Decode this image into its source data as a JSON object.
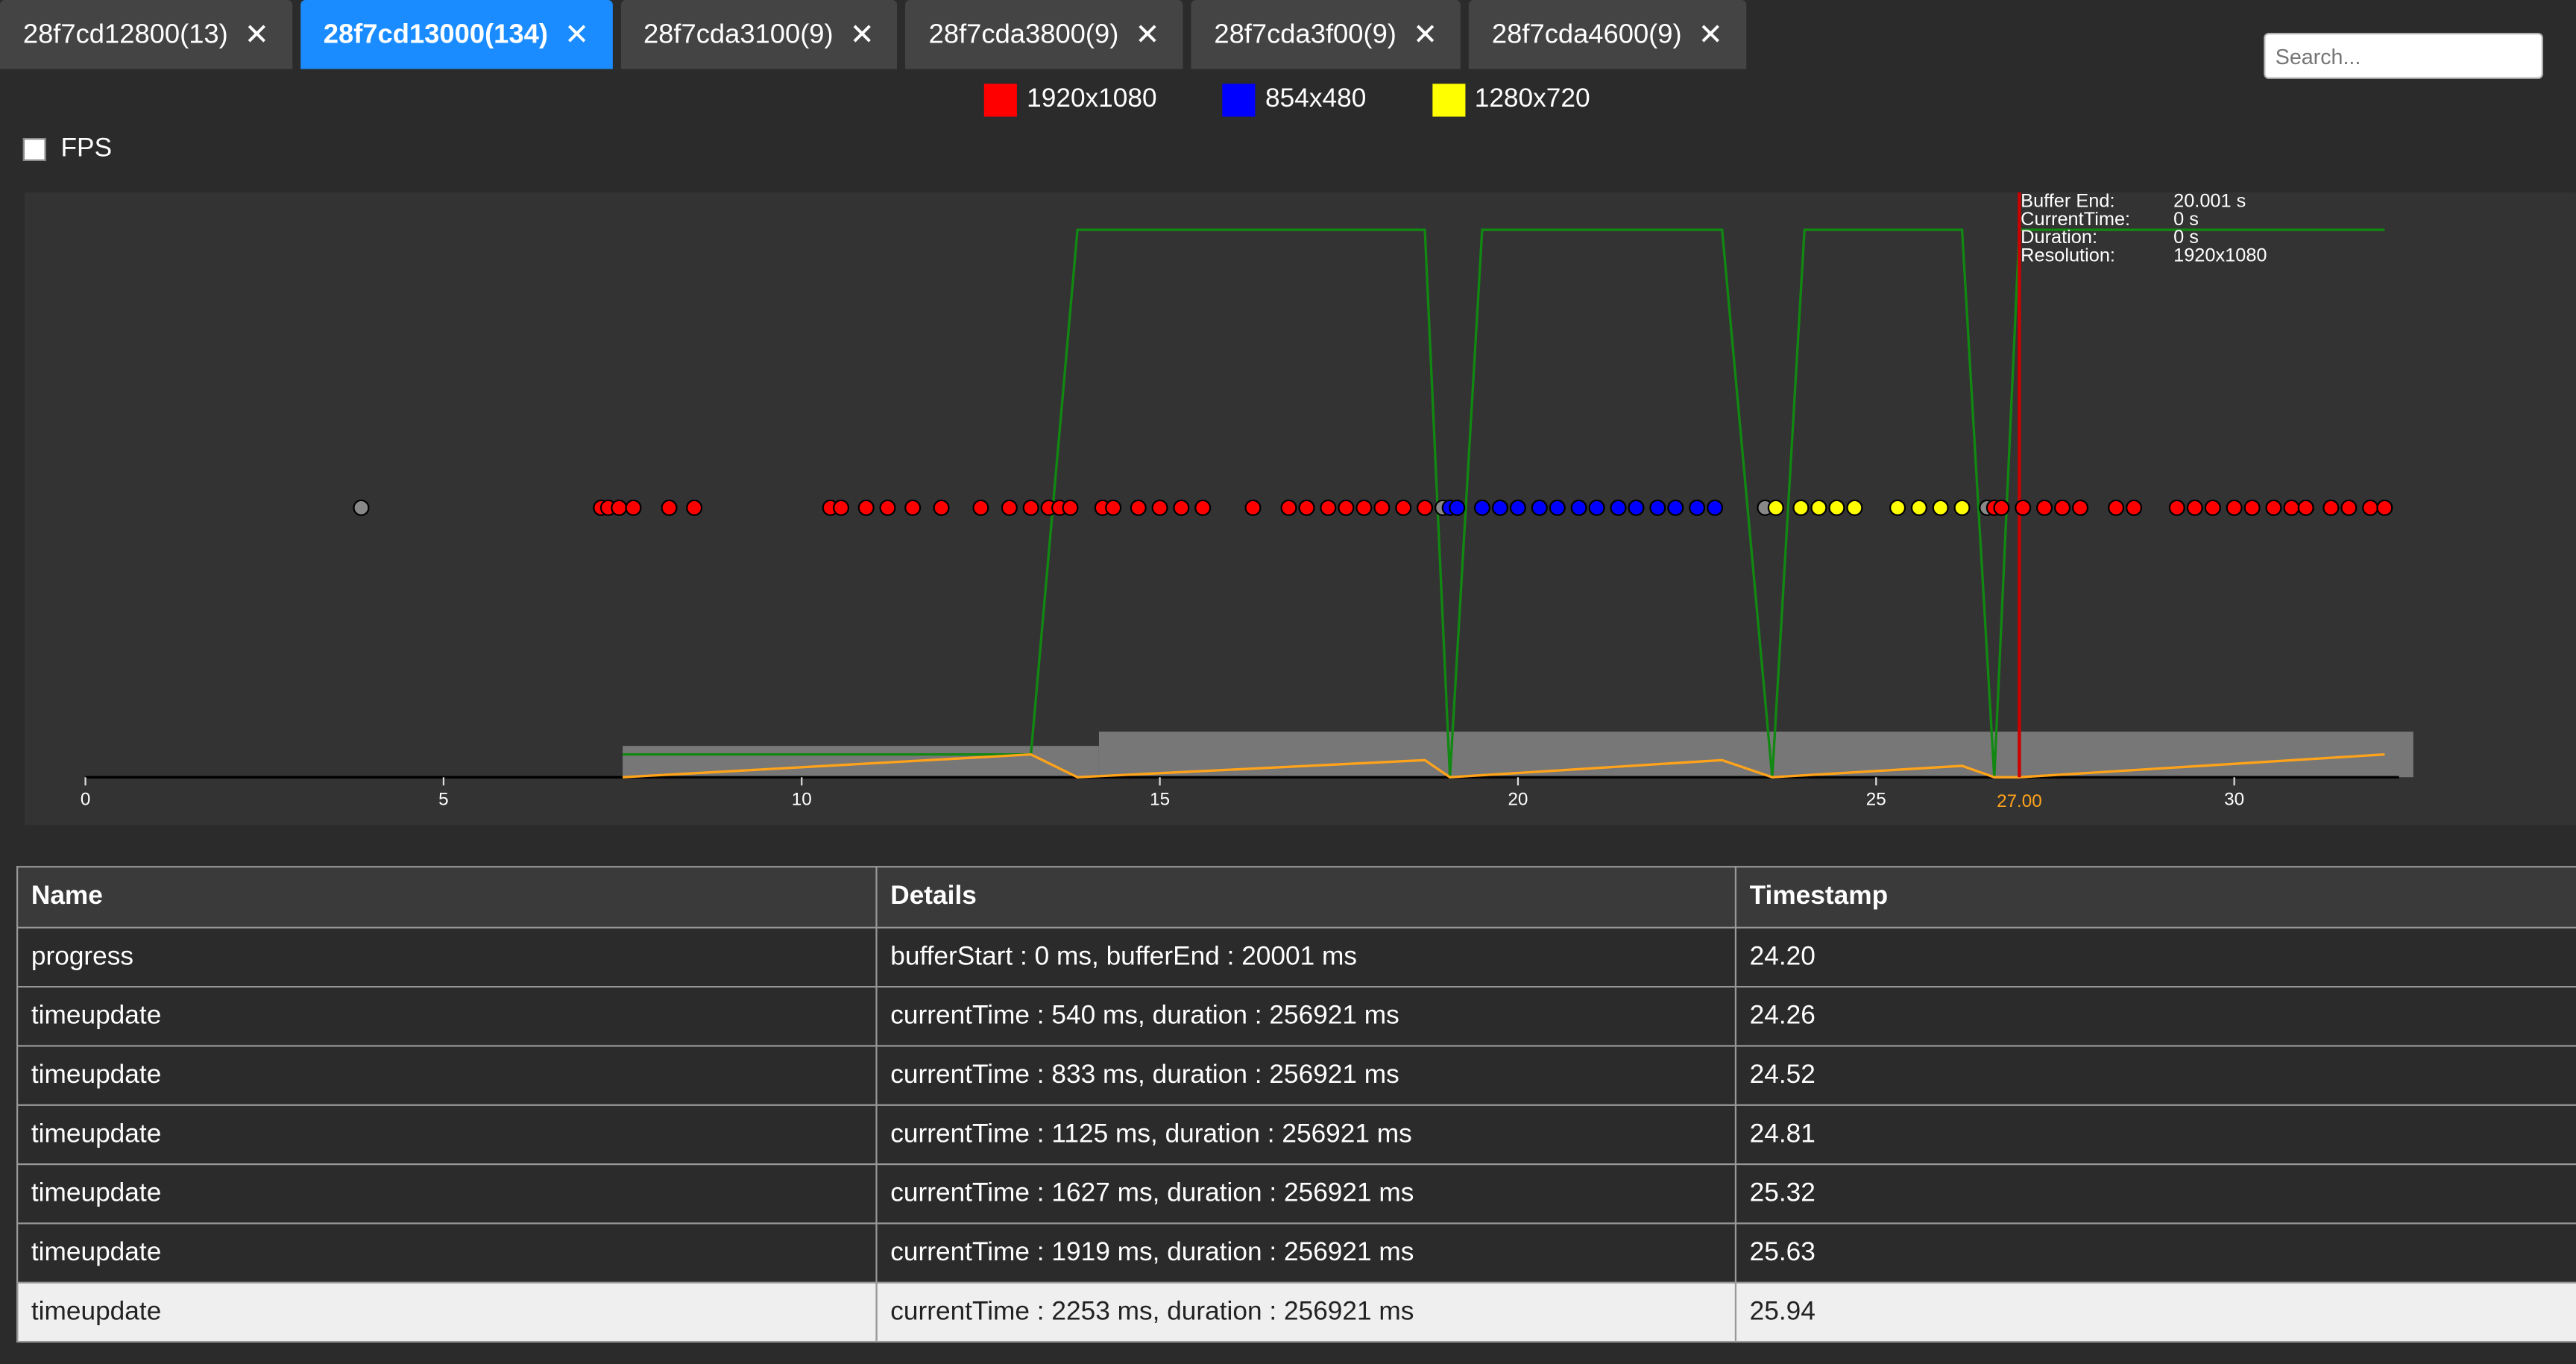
{
  "tabs": [
    {
      "label": "28f7cd12800(13)",
      "active": false
    },
    {
      "label": "28f7cd13000(134)",
      "active": true
    },
    {
      "label": "28f7cda3100(9)",
      "active": false
    },
    {
      "label": "28f7cda3800(9)",
      "active": false
    },
    {
      "label": "28f7cda3f00(9)",
      "active": false
    },
    {
      "label": "28f7cda4600(9)",
      "active": false
    }
  ],
  "close_icon_glyph": "✕",
  "search": {
    "placeholder": "Search..."
  },
  "legend": [
    {
      "label": "1920x1080",
      "color": "#ff0000"
    },
    {
      "label": "854x480",
      "color": "#0000ff"
    },
    {
      "label": "1280x720",
      "color": "#ffff00"
    }
  ],
  "fps": {
    "label": "FPS",
    "checked": false
  },
  "info_panel": {
    "buffer_end_label": "Buffer End:",
    "buffer_end_value": "20.001 s",
    "current_time_label": "CurrentTime:",
    "current_time_value": "0 s",
    "duration_label": "Duration:",
    "duration_value": "0 s",
    "resolution_label": "Resolution:",
    "resolution_value": "1920x1080"
  },
  "chart_data": {
    "type": "scatter",
    "xlim": [
      0,
      32.3
    ],
    "x_ticks": [
      0,
      5,
      10,
      15,
      20,
      25,
      30
    ],
    "marker_x": 27.0,
    "marker_label": "27.00",
    "colors": {
      "1920x1080": "#ff0000",
      "854x480": "#0000ff",
      "1280x720": "#ffff00",
      "unknown": "#888888",
      "line": "#118811",
      "buffer": "#ffa31a",
      "bar": "#777777",
      "marker": "#cc0000"
    },
    "events": [
      {
        "x": 3.85,
        "res": "unknown"
      },
      {
        "x": 7.2,
        "res": "1920x1080"
      },
      {
        "x": 7.3,
        "res": "1920x1080"
      },
      {
        "x": 7.45,
        "res": "1920x1080"
      },
      {
        "x": 7.65,
        "res": "1920x1080"
      },
      {
        "x": 8.15,
        "res": "1920x1080"
      },
      {
        "x": 8.5,
        "res": "1920x1080"
      },
      {
        "x": 10.4,
        "res": "1920x1080"
      },
      {
        "x": 10.55,
        "res": "1920x1080"
      },
      {
        "x": 10.9,
        "res": "1920x1080"
      },
      {
        "x": 11.2,
        "res": "1920x1080"
      },
      {
        "x": 11.55,
        "res": "1920x1080"
      },
      {
        "x": 11.95,
        "res": "1920x1080"
      },
      {
        "x": 12.5,
        "res": "1920x1080"
      },
      {
        "x": 12.9,
        "res": "1920x1080"
      },
      {
        "x": 13.2,
        "res": "1920x1080"
      },
      {
        "x": 13.45,
        "res": "1920x1080"
      },
      {
        "x": 13.6,
        "res": "1920x1080"
      },
      {
        "x": 13.75,
        "res": "1920x1080"
      },
      {
        "x": 14.2,
        "res": "1920x1080"
      },
      {
        "x": 14.35,
        "res": "1920x1080"
      },
      {
        "x": 14.7,
        "res": "1920x1080"
      },
      {
        "x": 15.0,
        "res": "1920x1080"
      },
      {
        "x": 15.3,
        "res": "1920x1080"
      },
      {
        "x": 15.6,
        "res": "1920x1080"
      },
      {
        "x": 16.3,
        "res": "1920x1080"
      },
      {
        "x": 16.8,
        "res": "1920x1080"
      },
      {
        "x": 17.05,
        "res": "1920x1080"
      },
      {
        "x": 17.35,
        "res": "1920x1080"
      },
      {
        "x": 17.6,
        "res": "1920x1080"
      },
      {
        "x": 17.85,
        "res": "1920x1080"
      },
      {
        "x": 18.1,
        "res": "1920x1080"
      },
      {
        "x": 18.4,
        "res": "1920x1080"
      },
      {
        "x": 18.7,
        "res": "1920x1080"
      },
      {
        "x": 18.95,
        "res": "unknown"
      },
      {
        "x": 19.05,
        "res": "854x480"
      },
      {
        "x": 19.15,
        "res": "854x480"
      },
      {
        "x": 19.5,
        "res": "854x480"
      },
      {
        "x": 19.75,
        "res": "854x480"
      },
      {
        "x": 20.0,
        "res": "854x480"
      },
      {
        "x": 20.3,
        "res": "854x480"
      },
      {
        "x": 20.55,
        "res": "854x480"
      },
      {
        "x": 20.85,
        "res": "854x480"
      },
      {
        "x": 21.1,
        "res": "854x480"
      },
      {
        "x": 21.4,
        "res": "854x480"
      },
      {
        "x": 21.65,
        "res": "854x480"
      },
      {
        "x": 21.95,
        "res": "854x480"
      },
      {
        "x": 22.2,
        "res": "854x480"
      },
      {
        "x": 22.5,
        "res": "854x480"
      },
      {
        "x": 22.75,
        "res": "854x480"
      },
      {
        "x": 23.45,
        "res": "unknown"
      },
      {
        "x": 23.6,
        "res": "1280x720"
      },
      {
        "x": 23.95,
        "res": "1280x720"
      },
      {
        "x": 24.2,
        "res": "1280x720"
      },
      {
        "x": 24.45,
        "res": "1280x720"
      },
      {
        "x": 24.7,
        "res": "1280x720"
      },
      {
        "x": 25.3,
        "res": "1280x720"
      },
      {
        "x": 25.6,
        "res": "1280x720"
      },
      {
        "x": 25.9,
        "res": "1280x720"
      },
      {
        "x": 26.2,
        "res": "1280x720"
      },
      {
        "x": 26.55,
        "res": "unknown"
      },
      {
        "x": 26.65,
        "res": "1920x1080"
      },
      {
        "x": 26.75,
        "res": "1920x1080"
      },
      {
        "x": 27.05,
        "res": "1920x1080"
      },
      {
        "x": 27.35,
        "res": "1920x1080"
      },
      {
        "x": 27.6,
        "res": "1920x1080"
      },
      {
        "x": 27.85,
        "res": "1920x1080"
      },
      {
        "x": 28.35,
        "res": "1920x1080"
      },
      {
        "x": 28.6,
        "res": "1920x1080"
      },
      {
        "x": 29.2,
        "res": "1920x1080"
      },
      {
        "x": 29.45,
        "res": "1920x1080"
      },
      {
        "x": 29.7,
        "res": "1920x1080"
      },
      {
        "x": 30.0,
        "res": "1920x1080"
      },
      {
        "x": 30.25,
        "res": "1920x1080"
      },
      {
        "x": 30.55,
        "res": "1920x1080"
      },
      {
        "x": 30.8,
        "res": "1920x1080"
      },
      {
        "x": 31.0,
        "res": "1920x1080"
      },
      {
        "x": 31.35,
        "res": "1920x1080"
      },
      {
        "x": 31.6,
        "res": "1920x1080"
      },
      {
        "x": 31.9,
        "res": "1920x1080"
      },
      {
        "x": 32.1,
        "res": "1920x1080"
      }
    ],
    "green_line": [
      [
        7.5,
        0.04
      ],
      [
        13.2,
        0.04
      ],
      [
        13.85,
        0.96
      ],
      [
        18.7,
        0.96
      ],
      [
        19.05,
        0.0
      ],
      [
        19.5,
        0.96
      ],
      [
        22.85,
        0.96
      ],
      [
        23.55,
        0.0
      ],
      [
        24.0,
        0.96
      ],
      [
        26.2,
        0.96
      ],
      [
        26.65,
        0.0
      ],
      [
        27.0,
        0.96
      ],
      [
        32.1,
        0.96
      ]
    ],
    "buffer_line": [
      [
        7.5,
        0.0
      ],
      [
        13.2,
        0.04
      ],
      [
        13.85,
        0.0
      ],
      [
        18.7,
        0.03
      ],
      [
        19.05,
        0.0
      ],
      [
        22.85,
        0.03
      ],
      [
        23.55,
        0.0
      ],
      [
        26.2,
        0.02
      ],
      [
        26.65,
        0.0
      ],
      [
        27.0,
        0.0
      ],
      [
        32.1,
        0.04
      ]
    ],
    "buffer_bars": [
      {
        "x0": 7.5,
        "x1": 14.15,
        "level": 0.055
      },
      {
        "x0": 14.15,
        "x1": 32.5,
        "level": 0.08
      }
    ]
  },
  "table": {
    "headers": [
      "Name",
      "Details",
      "Timestamp"
    ],
    "rows": [
      {
        "name": "progress",
        "details": "bufferStart : 0 ms, bufferEnd : 20001 ms",
        "timestamp": "24.20"
      },
      {
        "name": "timeupdate",
        "details": "currentTime : 540 ms, duration : 256921 ms",
        "timestamp": "24.26"
      },
      {
        "name": "timeupdate",
        "details": "currentTime : 833 ms, duration : 256921 ms",
        "timestamp": "24.52"
      },
      {
        "name": "timeupdate",
        "details": "currentTime : 1125 ms, duration : 256921 ms",
        "timestamp": "24.81"
      },
      {
        "name": "timeupdate",
        "details": "currentTime : 1627 ms, duration : 256921 ms",
        "timestamp": "25.32"
      },
      {
        "name": "timeupdate",
        "details": "currentTime : 1919 ms, duration : 256921 ms",
        "timestamp": "25.63"
      },
      {
        "name": "timeupdate",
        "details": "currentTime : 2253 ms, duration : 256921 ms",
        "timestamp": "25.94",
        "highlighted": true
      }
    ]
  }
}
